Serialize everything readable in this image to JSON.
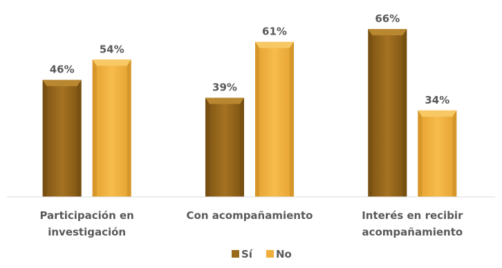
{
  "chart_data": {
    "type": "bar",
    "categories": [
      [
        "Participación en",
        "investigación"
      ],
      [
        "Con acompañamiento"
      ],
      [
        "Interés en recibir",
        "acompañamiento"
      ]
    ],
    "series": [
      {
        "name": "Sí",
        "values": [
          46,
          39,
          66
        ],
        "labels": [
          "46%",
          "39%",
          "66%"
        ],
        "color": "#9A6A1C",
        "light": "#B98730",
        "dark": "#6E4A10"
      },
      {
        "name": "No",
        "values": [
          54,
          61,
          34
        ],
        "labels": [
          "54%",
          "61%",
          "34%"
        ],
        "color": "#F0AE3C",
        "light": "#F8C864",
        "dark": "#C48720"
      }
    ],
    "ylim": [
      0,
      100
    ],
    "grid": false,
    "legend": "bottom-center",
    "bar_style": "beveled"
  }
}
